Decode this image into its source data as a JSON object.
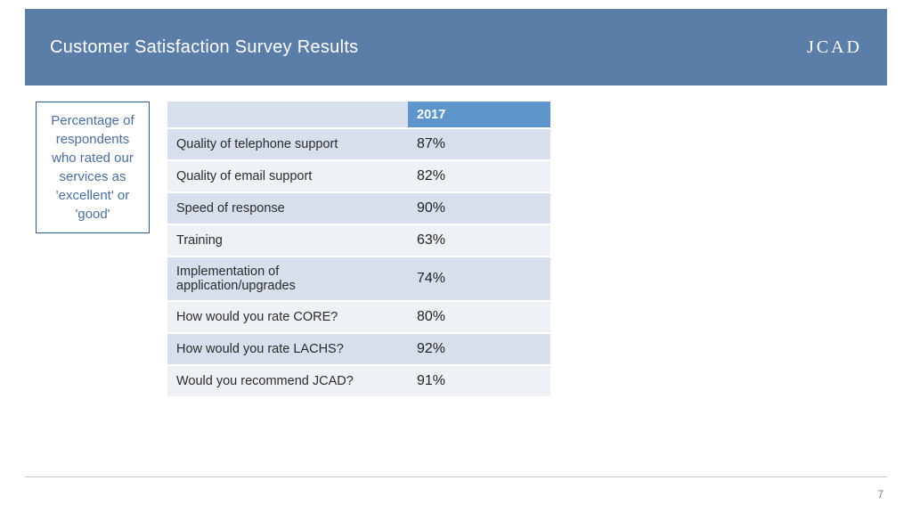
{
  "header": {
    "title": "Customer Satisfaction Survey Results",
    "logo": "JCAD"
  },
  "callout": {
    "text": "Percentage of respondents who rated our services as 'excellent' or 'good'"
  },
  "table": {
    "year_header": "2017",
    "header_bg": "#5e96cc",
    "header_fg": "#ffffff",
    "row_alt_bg_odd": "#d6dfeb",
    "row_alt_bg_even": "#eef2f7",
    "rows": [
      {
        "label": "Quality of telephone support",
        "value": "87%"
      },
      {
        "label": "Quality of email support",
        "value": "82%"
      },
      {
        "label": "Speed of response",
        "value": "90%"
      },
      {
        "label": "Training",
        "value": "63%"
      },
      {
        "label": "Implementation of application/upgrades",
        "value": "74%"
      },
      {
        "label": "How would you rate CORE?",
        "value": "80%"
      },
      {
        "label": "How would you rate LACHS?",
        "value": "92%"
      },
      {
        "label": "Would you recommend JCAD?",
        "value": "91%"
      }
    ]
  },
  "page_number": "7",
  "colors": {
    "header_bar": "#5b7ea8",
    "callout_border": "#2e5a8f",
    "callout_text": "#4a6fa0",
    "rule": "#bfc9d6"
  }
}
